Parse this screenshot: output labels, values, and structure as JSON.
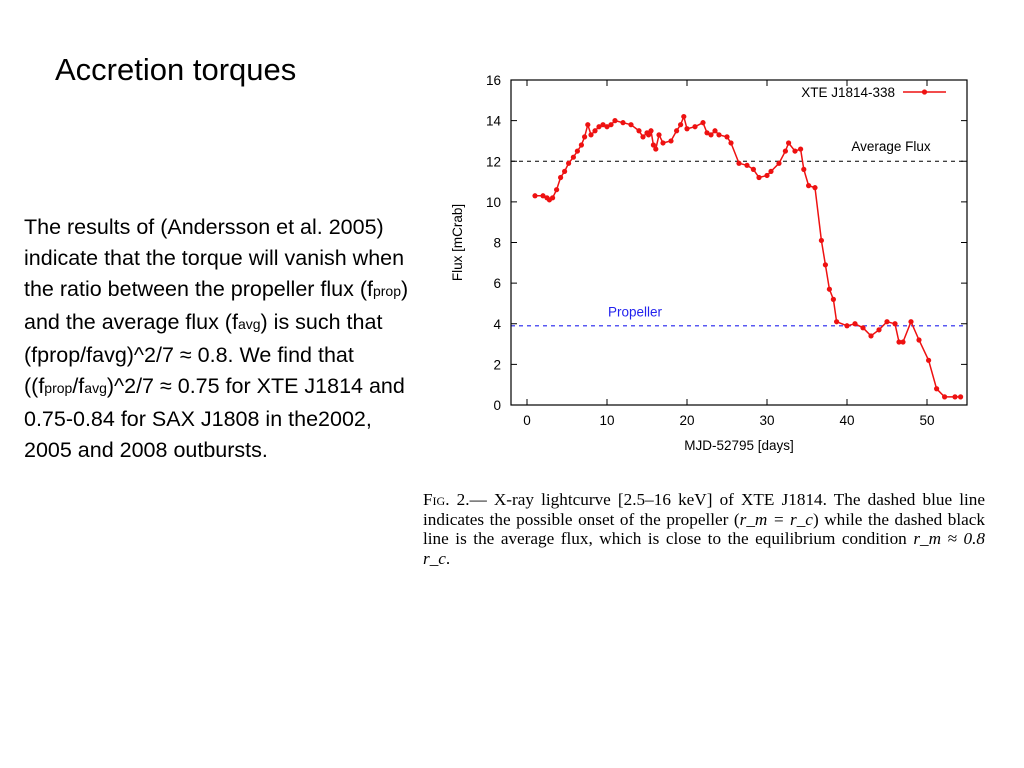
{
  "slide": {
    "title": "Accretion torques"
  },
  "body": {
    "part1": "The results of (Andersson et al. 2005) indicate that the torque will vanish when the ratio between the propeller flux (f",
    "sub_prop": "prop",
    "part2": ") and the average flux (f",
    "sub_avg": "avg",
    "part3": ") is such that (fprop/favg)^2/7 ≈ 0.8. We find that ((f",
    "sub_prop2": "prop",
    "part4": "/f",
    "sub_avg2": "avg",
    "part5": ")^2/7 ≈ 0.75 for XTE J1814 and 0.75-0.84 for SAX J1808 in the2002, 2005 and 2008 outbursts."
  },
  "caption": {
    "fig_label": "Fig. 2.",
    "text1": "— X-ray lightcurve [2.5–16 keV] of XTE J1814. The dashed blue line indicates the possible onset of the propeller (",
    "math1": "r_m = r_c",
    "text2": ") while the dashed black line is the average flux, which is close to the equilibrium condition ",
    "math2": "r_m ≈ 0.8 r_c",
    "text3": "."
  },
  "chart_data": {
    "type": "line",
    "xlabel": "MJD-52795 [days]",
    "ylabel": "Flux [mCrab]",
    "xlim": [
      -2,
      55
    ],
    "ylim": [
      0,
      16
    ],
    "xticks": [
      0,
      10,
      20,
      30,
      40,
      50
    ],
    "yticks": [
      0,
      2,
      4,
      6,
      8,
      10,
      12,
      14,
      16
    ],
    "grid": false,
    "legend": "top-right",
    "color": "#ee1111",
    "series": [
      {
        "name": "XTE J1814-338",
        "x": [
          1,
          2,
          2.5,
          2.8,
          3.2,
          3.7,
          4.2,
          4.7,
          5.2,
          5.8,
          6.3,
          6.8,
          7.2,
          7.6,
          8,
          8.5,
          9,
          9.5,
          10,
          10.5,
          11,
          12,
          13,
          14,
          14.5,
          15,
          15.2,
          15.5,
          15.8,
          16.1,
          16.5,
          17,
          18,
          18.7,
          19.2,
          19.6,
          20,
          21,
          22,
          22.5,
          23,
          23.5,
          24,
          25,
          25.5,
          26.5,
          27.5,
          28.3,
          29,
          30,
          30.5,
          31.5,
          32.3,
          32.7,
          33.5,
          34.2,
          34.6,
          35.2,
          36,
          36.8,
          37.3,
          37.8,
          38.3,
          38.7,
          40,
          41,
          42,
          43,
          44,
          45,
          46,
          46.5,
          47,
          48,
          49,
          50.2,
          51.2,
          52.2,
          53.5,
          54.2
        ],
        "values": [
          10.3,
          10.3,
          10.2,
          10.1,
          10.2,
          10.6,
          11.2,
          11.5,
          11.9,
          12.2,
          12.5,
          12.8,
          13.2,
          13.8,
          13.3,
          13.5,
          13.7,
          13.8,
          13.7,
          13.8,
          14.0,
          13.9,
          13.8,
          13.5,
          13.2,
          13.4,
          13.3,
          13.5,
          12.8,
          12.6,
          13.3,
          12.9,
          13.0,
          13.5,
          13.8,
          14.2,
          13.6,
          13.7,
          13.9,
          13.4,
          13.3,
          13.5,
          13.3,
          13.2,
          12.9,
          11.9,
          11.8,
          11.6,
          11.2,
          11.3,
          11.5,
          11.9,
          12.5,
          12.9,
          12.5,
          12.6,
          11.6,
          10.8,
          10.7,
          8.1,
          6.9,
          5.7,
          5.2,
          4.1,
          3.9,
          4.0,
          3.8,
          3.4,
          3.7,
          4.1,
          4.0,
          3.1,
          3.1,
          4.1,
          3.2,
          2.2,
          0.8,
          0.4,
          0.4,
          0.4
        ]
      }
    ],
    "reference_lines": [
      {
        "label": "Average Flux",
        "y": 12.0,
        "color": "#000000"
      },
      {
        "label": "Propeller",
        "y": 3.9,
        "color": "#2222ee"
      }
    ]
  }
}
